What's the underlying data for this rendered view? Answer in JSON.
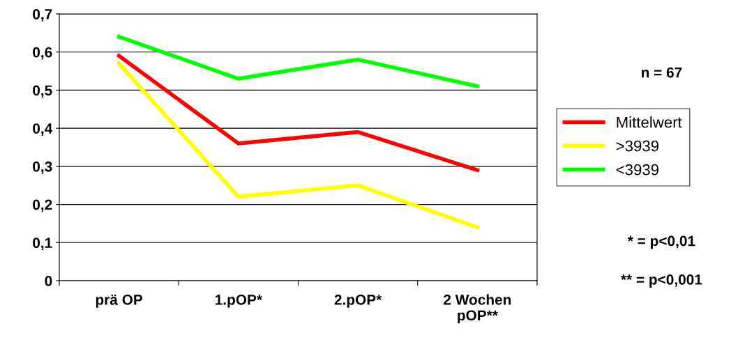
{
  "chart_data": {
    "type": "line",
    "categories": [
      "prä OP",
      "1.pOP*",
      "2.pOP*",
      "2 Wochen\npOP**"
    ],
    "series": [
      {
        "name": "Mittelwert",
        "color": "#ff0000",
        "values": [
          0.59,
          0.36,
          0.39,
          0.29
        ]
      },
      {
        "name": ">3939",
        "color": "#ffff00",
        "values": [
          0.57,
          0.22,
          0.25,
          0.14
        ]
      },
      {
        "name": "<3939",
        "color": "#00ff00",
        "values": [
          0.64,
          0.53,
          0.58,
          0.51
        ]
      }
    ],
    "ylim": [
      0,
      0.7
    ],
    "yticks": [
      {
        "value": 0,
        "label": "0"
      },
      {
        "value": 0.1,
        "label": "0,1"
      },
      {
        "value": 0.2,
        "label": "0,2"
      },
      {
        "value": 0.3,
        "label": "0,3"
      },
      {
        "value": 0.4,
        "label": "0,4"
      },
      {
        "value": 0.5,
        "label": "0,5"
      },
      {
        "value": 0.6,
        "label": "0,6"
      },
      {
        "value": 0.7,
        "label": "0,7"
      }
    ],
    "grid": "y",
    "legend": "right",
    "marker": "none",
    "line_style": "solid",
    "annotations": [
      "n = 67",
      "* = p<0,01",
      "** = p<0,001"
    ]
  }
}
